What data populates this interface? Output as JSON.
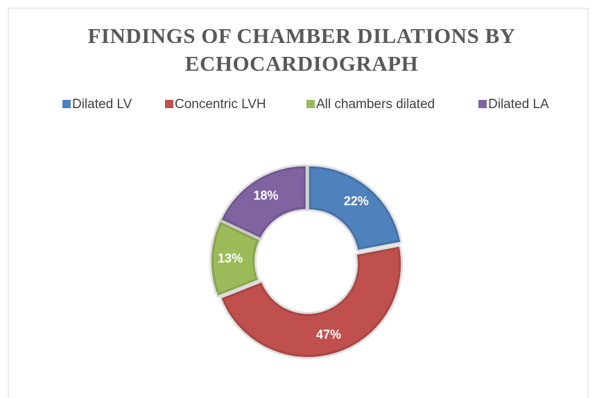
{
  "chart_data": {
    "type": "donut",
    "title": "FINDINGS OF CHAMBER DILATIONS BY ECHOCARDIOGRAPH",
    "categories": [
      "Dilated LV",
      "Concentric LVH",
      "All chambers dilated",
      "Dilated LA"
    ],
    "values": [
      22,
      47,
      13,
      18
    ],
    "value_labels": [
      "22%",
      "47%",
      "13%",
      "18%"
    ],
    "colors": [
      "#4f81bd",
      "#c0504d",
      "#9bbb59",
      "#8064a2"
    ],
    "legend": "top"
  }
}
